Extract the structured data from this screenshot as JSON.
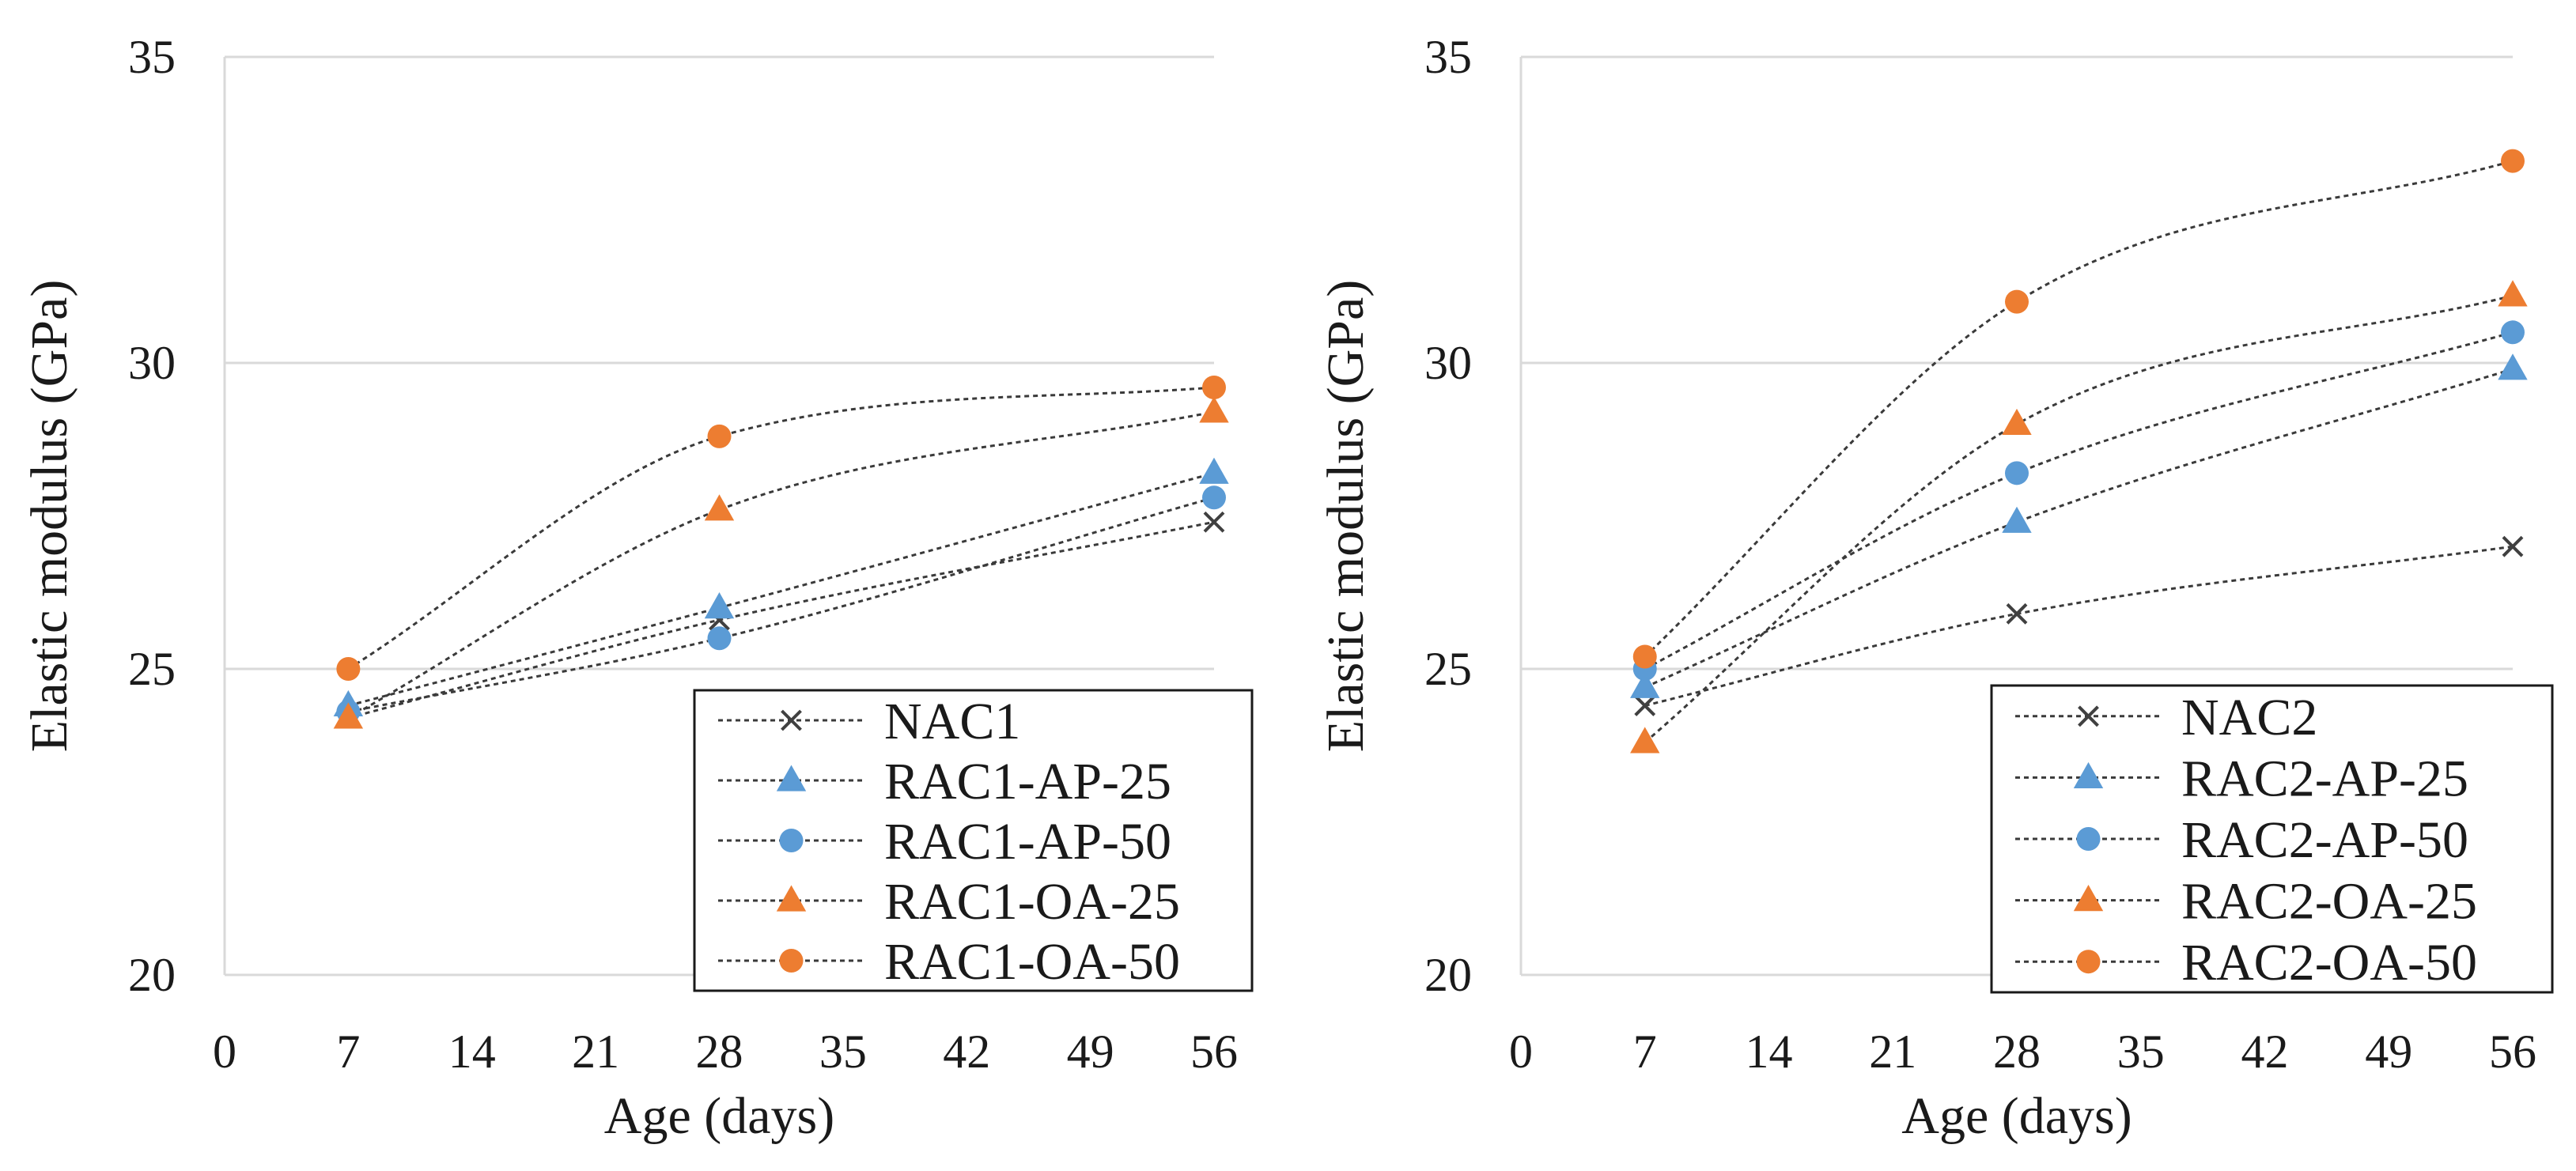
{
  "chart_data": [
    {
      "type": "line",
      "title": "",
      "xlabel": "Age (days)",
      "ylabel": "Elastic modulus (GPa)",
      "xlim": [
        0,
        56
      ],
      "ylim": [
        20,
        35
      ],
      "xticks": [
        0,
        7,
        14,
        21,
        28,
        35,
        42,
        49,
        56
      ],
      "yticks": [
        20,
        25,
        30,
        35
      ],
      "grid": "horizontal",
      "legend_position": "bottom-right",
      "x": [
        7,
        28,
        56
      ],
      "series": [
        {
          "name": "NAC1",
          "marker": "x",
          "color": "#404040",
          "values": [
            24.2,
            25.8,
            27.4
          ]
        },
        {
          "name": "RAC1-AP-25",
          "marker": "triangle",
          "color": "#5B9BD5",
          "values": [
            24.4,
            26.0,
            28.2
          ]
        },
        {
          "name": "RAC1-AP-50",
          "marker": "circle",
          "color": "#5B9BD5",
          "values": [
            24.3,
            25.5,
            27.8
          ]
        },
        {
          "name": "RAC1-OA-25",
          "marker": "triangle",
          "color": "#ED7D31",
          "values": [
            24.2,
            27.6,
            29.2
          ]
        },
        {
          "name": "RAC1-OA-50",
          "marker": "circle",
          "color": "#ED7D31",
          "values": [
            25.0,
            28.8,
            29.6
          ]
        }
      ]
    },
    {
      "type": "line",
      "title": "",
      "xlabel": "Age (days)",
      "ylabel": "Elastic modulus (GPa)",
      "xlim": [
        0,
        56
      ],
      "ylim": [
        20,
        35
      ],
      "xticks": [
        0,
        7,
        14,
        21,
        28,
        35,
        42,
        49,
        56
      ],
      "yticks": [
        20,
        25,
        30,
        35
      ],
      "grid": "horizontal",
      "legend_position": "bottom-right",
      "x": [
        7,
        28,
        56
      ],
      "series": [
        {
          "name": "NAC2",
          "marker": "x",
          "color": "#404040",
          "values": [
            24.4,
            25.9,
            27.0
          ]
        },
        {
          "name": "RAC2-AP-25",
          "marker": "triangle",
          "color": "#5B9BD5",
          "values": [
            24.7,
            27.4,
            29.9
          ]
        },
        {
          "name": "RAC2-AP-50",
          "marker": "circle",
          "color": "#5B9BD5",
          "values": [
            25.0,
            28.2,
            30.5
          ]
        },
        {
          "name": "RAC2-OA-25",
          "marker": "triangle",
          "color": "#ED7D31",
          "values": [
            23.8,
            29.0,
            31.1
          ]
        },
        {
          "name": "RAC2-OA-50",
          "marker": "circle",
          "color": "#ED7D31",
          "values": [
            25.2,
            31.0,
            33.3
          ]
        }
      ]
    }
  ]
}
